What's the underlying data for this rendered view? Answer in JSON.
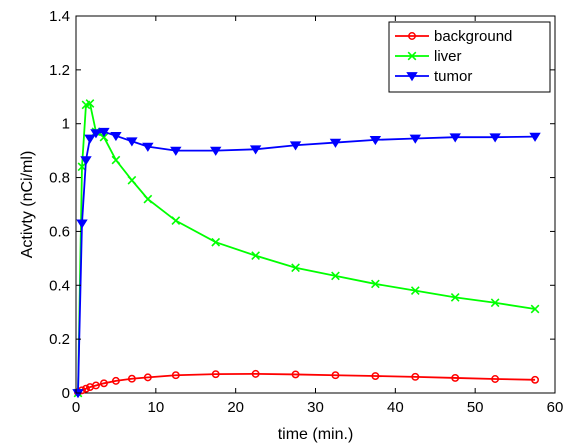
{
  "chart_data": {
    "type": "line",
    "xlabel": "time (min.)",
    "ylabel": "Activty (nCi/ml)",
    "xlim": [
      0,
      60
    ],
    "ylim": [
      0,
      1.4
    ],
    "xticks": [
      "0",
      "10",
      "20",
      "30",
      "40",
      "50",
      "60"
    ],
    "yticks": [
      "0",
      "0.2",
      "0.4",
      "0.6",
      "0.8",
      "1",
      "1.2",
      "1.4"
    ],
    "grid": false,
    "legend_position": "top-right",
    "series": [
      {
        "name": "background",
        "color": "#ff0000",
        "marker": "circle",
        "x": [
          0.25,
          0.75,
          1.25,
          1.75,
          2.5,
          3.5,
          5,
          7,
          9,
          12.5,
          17.5,
          22.5,
          27.5,
          32.5,
          37.5,
          42.5,
          47.5,
          52.5,
          57.5
        ],
        "y": [
          0.003,
          0.01,
          0.016,
          0.022,
          0.028,
          0.036,
          0.045,
          0.053,
          0.058,
          0.066,
          0.07,
          0.071,
          0.069,
          0.066,
          0.063,
          0.06,
          0.056,
          0.052,
          0.049
        ]
      },
      {
        "name": "liver",
        "color": "#00ff00",
        "marker": "x",
        "x": [
          0.25,
          0.75,
          1.25,
          1.75,
          2.5,
          3.5,
          5,
          7,
          9,
          12.5,
          17.5,
          22.5,
          27.5,
          32.5,
          37.5,
          42.5,
          47.5,
          52.5,
          57.5
        ],
        "y": [
          0.0,
          0.84,
          1.07,
          1.075,
          0.97,
          0.95,
          0.865,
          0.79,
          0.72,
          0.64,
          0.56,
          0.51,
          0.465,
          0.435,
          0.405,
          0.38,
          0.355,
          0.335,
          0.312
        ]
      },
      {
        "name": "tumor",
        "color": "#0000ff",
        "marker": "triangle-down",
        "x": [
          0.25,
          0.75,
          1.25,
          1.75,
          2.5,
          3.5,
          5,
          7,
          9,
          12.5,
          17.5,
          22.5,
          27.5,
          32.5,
          37.5,
          42.5,
          47.5,
          52.5,
          57.5
        ],
        "y": [
          0.0,
          0.63,
          0.865,
          0.945,
          0.965,
          0.97,
          0.955,
          0.935,
          0.915,
          0.9,
          0.9,
          0.905,
          0.92,
          0.93,
          0.94,
          0.945,
          0.95,
          0.95,
          0.952
        ]
      }
    ]
  }
}
